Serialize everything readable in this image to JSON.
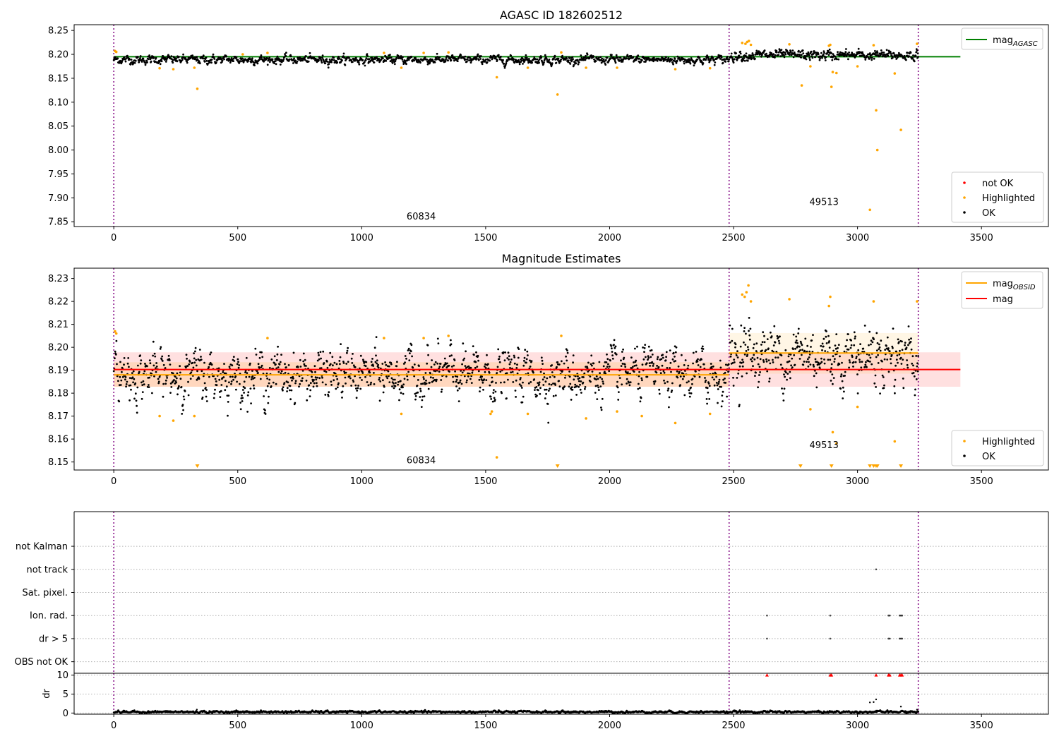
{
  "chart_data": [
    {
      "type": "scatter",
      "title": "AGASC ID 182602512",
      "xlim": [
        -160,
        3770
      ],
      "ylim": [
        7.84,
        8.262
      ],
      "xticks": [
        0,
        500,
        1000,
        1500,
        2000,
        2500,
        3000,
        3500
      ],
      "yticks": [
        7.85,
        7.9,
        7.95,
        8.0,
        8.05,
        8.1,
        8.15,
        8.2,
        8.25
      ],
      "ytick_labels": [
        "7.85",
        "7.90",
        "7.95",
        "8.00",
        "8.05",
        "8.10",
        "8.15",
        "8.20",
        "8.25"
      ],
      "vlines": [
        0,
        2482,
        3245
      ],
      "hlines": [
        {
          "name": "mag_AGASC",
          "y": 8.195,
          "x": [
            0,
            3415
          ],
          "color": "#008000"
        }
      ],
      "obsid_labels": [
        {
          "text": "60834",
          "x": 1240,
          "y": 7.855
        },
        {
          "text": "49513",
          "x": 2865,
          "y": 7.885
        }
      ],
      "legend_lines": [
        {
          "label": "mag",
          "sub": "AGASC",
          "color": "#008000"
        }
      ],
      "legend_markers": [
        {
          "label": "not OK",
          "color": "#ff0000"
        },
        {
          "label": "Highlighted",
          "color": "#ffa500"
        },
        {
          "label": "OK",
          "color": "#000000"
        }
      ],
      "series": [
        {
          "name": "OK",
          "color": "#000000",
          "segments": [
            {
              "x": [
                0,
                2482
              ],
              "mean": 8.189,
              "sd": 0.0045,
              "n": 1400
            },
            {
              "x": [
                2485,
                3245
              ],
              "mean": 8.198,
              "sd": 0.0055,
              "n": 450
            }
          ]
        },
        {
          "name": "Highlighted",
          "color": "#ffa500",
          "points": [
            [
              5,
              8.207
            ],
            [
              10,
              8.205
            ],
            [
              185,
              8.171
            ],
            [
              240,
              8.169
            ],
            [
              325,
              8.172
            ],
            [
              337,
              8.128
            ],
            [
              520,
              8.2
            ],
            [
              620,
              8.203
            ],
            [
              1090,
              8.203
            ],
            [
              1160,
              8.172
            ],
            [
              1250,
              8.203
            ],
            [
              1350,
              8.204
            ],
            [
              1545,
              8.152
            ],
            [
              1670,
              8.172
            ],
            [
              1790,
              8.116
            ],
            [
              1805,
              8.204
            ],
            [
              1905,
              8.172
            ],
            [
              2030,
              8.172
            ],
            [
              2265,
              8.169
            ],
            [
              2405,
              8.171
            ],
            [
              2535,
              8.224
            ],
            [
              2548,
              8.222
            ],
            [
              2555,
              8.226
            ],
            [
              2562,
              8.228
            ],
            [
              2570,
              8.22
            ],
            [
              2725,
              8.221
            ],
            [
              2775,
              8.135
            ],
            [
              2810,
              8.175
            ],
            [
              2885,
              8.218
            ],
            [
              2890,
              8.22
            ],
            [
              2895,
              8.132
            ],
            [
              2900,
              8.163
            ],
            [
              2915,
              8.161
            ],
            [
              3000,
              8.175
            ],
            [
              3050,
              7.875
            ],
            [
              3065,
              8.219
            ],
            [
              3075,
              8.083
            ],
            [
              3080,
              8.0
            ],
            [
              3150,
              8.16
            ],
            [
              3175,
              8.042
            ],
            [
              3240,
              8.222
            ]
          ]
        }
      ]
    },
    {
      "type": "scatter",
      "title": "Magnitude Estimates",
      "xlim": [
        -160,
        3770
      ],
      "ylim": [
        8.1465,
        8.2345
      ],
      "xticks": [
        0,
        500,
        1000,
        1500,
        2000,
        2500,
        3000,
        3500
      ],
      "yticks": [
        8.15,
        8.16,
        8.17,
        8.18,
        8.19,
        8.2,
        8.21,
        8.22,
        8.23
      ],
      "ytick_labels": [
        "8.15",
        "8.16",
        "8.17",
        "8.18",
        "8.19",
        "8.20",
        "8.21",
        "8.22",
        "8.23"
      ],
      "vlines": [
        0,
        2482,
        3245
      ],
      "hlines": [
        {
          "name": "mag_OBSID",
          "y": 8.188,
          "x": [
            0,
            2482
          ],
          "color": "#ffa500"
        },
        {
          "name": "mag_OBSID",
          "y": 8.1975,
          "x": [
            2482,
            3245
          ],
          "color": "#ffa500"
        },
        {
          "name": "mag",
          "y": 8.1903,
          "x": [
            0,
            3415
          ],
          "color": "#ff0000"
        }
      ],
      "bands": [
        {
          "x": [
            0,
            3415
          ],
          "y": [
            8.1828,
            8.1978
          ],
          "color": "#ff0000",
          "opacity": 0.12
        },
        {
          "x": [
            0,
            2482
          ],
          "y": [
            8.1828,
            8.1935
          ],
          "color": "#ffa500",
          "opacity": 0.15
        },
        {
          "x": [
            2482,
            3245
          ],
          "y": [
            8.1885,
            8.2062
          ],
          "color": "#ffa500",
          "opacity": 0.1
        }
      ],
      "obsid_labels": [
        {
          "text": "60834",
          "x": 1240,
          "y": 8.1495
        },
        {
          "text": "49513",
          "x": 2865,
          "y": 8.156
        }
      ],
      "legend_lines": [
        {
          "label": "mag",
          "sub": "OBSID",
          "color": "#ffa500"
        },
        {
          "label": "mag",
          "sub": "",
          "color": "#ff0000"
        }
      ],
      "legend_markers": [
        {
          "label": "Highlighted",
          "color": "#ffa500"
        },
        {
          "label": "OK",
          "color": "#000000"
        }
      ],
      "series": [
        {
          "name": "OK",
          "color": "#000000",
          "segments": [
            {
              "x": [
                0,
                2482
              ],
              "mean": 8.188,
              "sd": 0.0055,
              "n": 1400
            },
            {
              "x": [
                2485,
                3245
              ],
              "mean": 8.197,
              "sd": 0.007,
              "n": 450
            }
          ]
        },
        {
          "name": "Highlighted",
          "color": "#ffa500",
          "points": [
            [
              5,
              8.207
            ],
            [
              10,
              8.206
            ],
            [
              185,
              8.17
            ],
            [
              240,
              8.168
            ],
            [
              325,
              8.17
            ],
            [
              620,
              8.204
            ],
            [
              1090,
              8.204
            ],
            [
              1160,
              8.171
            ],
            [
              1250,
              8.204
            ],
            [
              1350,
              8.205
            ],
            [
              1520,
              8.171
            ],
            [
              1525,
              8.172
            ],
            [
              1545,
              8.152
            ],
            [
              1670,
              8.171
            ],
            [
              1805,
              8.205
            ],
            [
              1905,
              8.169
            ],
            [
              2030,
              8.172
            ],
            [
              2130,
              8.17
            ],
            [
              2265,
              8.167
            ],
            [
              2405,
              8.171
            ],
            [
              2535,
              8.223
            ],
            [
              2545,
              8.222
            ],
            [
              2552,
              8.224
            ],
            [
              2560,
              8.227
            ],
            [
              2570,
              8.22
            ],
            [
              2725,
              8.221
            ],
            [
              2810,
              8.173
            ],
            [
              2885,
              8.218
            ],
            [
              2890,
              8.222
            ],
            [
              2900,
              8.163
            ],
            [
              2915,
              8.158
            ],
            [
              3000,
              8.174
            ],
            [
              3065,
              8.22
            ],
            [
              3150,
              8.159
            ],
            [
              3240,
              8.22
            ]
          ]
        },
        {
          "name": "Below range",
          "color": "#ffa500",
          "markers": [
            337,
            1790,
            2770,
            2895,
            3050,
            3065,
            3075,
            3080,
            3175
          ]
        }
      ]
    },
    {
      "type": "scatter",
      "title": "",
      "xlim": [
        -160,
        3770
      ],
      "ylim": [
        -0.5,
        6.5
      ],
      "vlines": [
        0,
        2482,
        3245
      ],
      "flag_labels": [
        "OBS not OK",
        "dr > 5",
        "Ion. rad.",
        "Sat. pixel.",
        "not track",
        "not Kalman"
      ],
      "flags": [
        {
          "label": "not track",
          "x": [
            3075
          ]
        },
        {
          "label": "Ion. rad.",
          "x": [
            2635,
            2890,
            3125,
            3130,
            3170,
            3175,
            3180
          ]
        },
        {
          "label": "dr > 5",
          "x": [
            2635,
            2890,
            3125,
            3130,
            3170,
            3175,
            3180
          ]
        }
      ]
    },
    {
      "type": "scatter",
      "ylabel": "dr",
      "xlim": [
        -160,
        3770
      ],
      "ylim": [
        -0.3,
        10.5
      ],
      "xticks": [
        0,
        500,
        1000,
        1500,
        2000,
        2500,
        3000,
        3500
      ],
      "yticks": [
        0,
        5,
        10
      ],
      "ytick_labels": [
        "0",
        "5",
        "10"
      ],
      "vlines": [
        0,
        2482,
        3245
      ],
      "series": [
        {
          "name": "OK",
          "color": "#000000",
          "segments": [
            {
              "x": [
                0,
                3245
              ],
              "mean": 0.3,
              "sd": 0.15,
              "n": 1800
            }
          ]
        },
        {
          "name": "clipped",
          "color": "#ff0000",
          "markers": [
            2635,
            2890,
            2895,
            3075,
            3125,
            3130,
            3170,
            3175,
            3180
          ]
        },
        {
          "name": "outliers",
          "color": "#000000",
          "points": [
            [
              3050,
              2.8
            ],
            [
              3065,
              2.9
            ],
            [
              3075,
              3.6
            ],
            [
              3175,
              1.7
            ],
            [
              335,
              0.9
            ],
            [
              3240,
              0.9
            ]
          ]
        }
      ]
    }
  ],
  "colors": {
    "vline": "#800080",
    "grid": "#b0b0b0",
    "axis": "#000000"
  }
}
